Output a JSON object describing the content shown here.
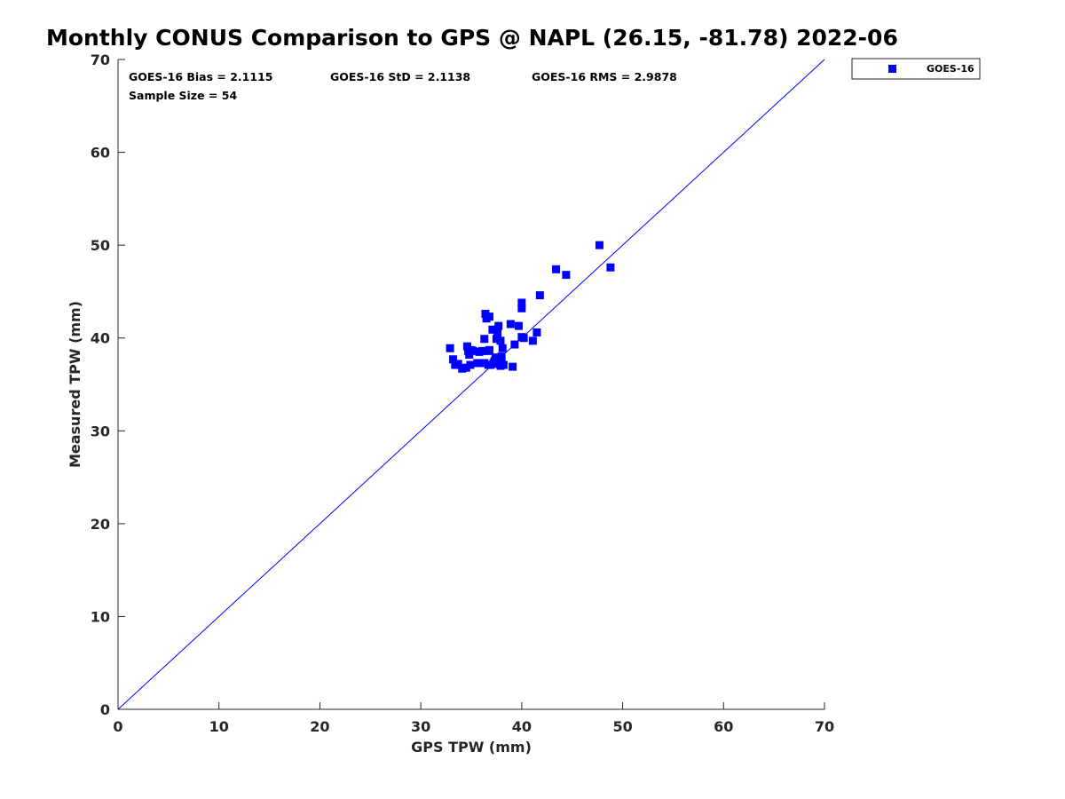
{
  "chart_data": {
    "type": "scatter",
    "title": "Monthly CONUS Comparison to GPS @ NAPL (26.15, -81.78) 2022-06",
    "xlabel": "GPS TPW (mm)",
    "ylabel": "Measured TPW (mm)",
    "xlim": [
      0,
      70
    ],
    "ylim": [
      0,
      70
    ],
    "xticks": [
      "0",
      "10",
      "20",
      "30",
      "40",
      "50",
      "60",
      "70"
    ],
    "yticks": [
      "0",
      "10",
      "20",
      "30",
      "40",
      "50",
      "60",
      "70"
    ],
    "grid": false,
    "legend_position": "outside-top-right",
    "reference_line": {
      "x": [
        0,
        70
      ],
      "y": [
        0,
        70
      ],
      "color": "#0000ff"
    },
    "stats": {
      "bias": "GOES-16 Bias = 2.1115",
      "std": "GOES-16 StD = 2.1138",
      "rms": "GOES-16 RMS = 2.9878",
      "sample_size": "Sample Size = 54"
    },
    "series": [
      {
        "name": "GOES-16",
        "color": "#0000ff",
        "marker": "square",
        "points": [
          [
            32.9,
            38.9
          ],
          [
            33.2,
            37.7
          ],
          [
            33.4,
            37.1
          ],
          [
            33.7,
            37.2
          ],
          [
            34.1,
            36.7
          ],
          [
            34.5,
            36.8
          ],
          [
            34.6,
            39.1
          ],
          [
            34.7,
            38.6
          ],
          [
            34.8,
            38.2
          ],
          [
            34.9,
            37.1
          ],
          [
            35.2,
            38.6
          ],
          [
            35.6,
            37.3
          ],
          [
            35.8,
            38.5
          ],
          [
            36.1,
            38.6
          ],
          [
            36.3,
            37.3
          ],
          [
            36.3,
            39.9
          ],
          [
            36.4,
            42.6
          ],
          [
            36.5,
            42.1
          ],
          [
            36.6,
            38.6
          ],
          [
            36.8,
            42.3
          ],
          [
            36.9,
            37.1
          ],
          [
            37.1,
            40.9
          ],
          [
            37.2,
            37.3
          ],
          [
            37.3,
            37.5
          ],
          [
            37.4,
            37.9
          ],
          [
            37.5,
            37.2
          ],
          [
            37.5,
            39.9
          ],
          [
            37.6,
            40.5
          ],
          [
            37.7,
            41.3
          ],
          [
            37.8,
            37.7
          ],
          [
            37.9,
            37.0
          ],
          [
            37.9,
            39.7
          ],
          [
            38.0,
            38.0
          ],
          [
            38.1,
            38.9
          ],
          [
            38.2,
            37.1
          ],
          [
            38.9,
            41.5
          ],
          [
            39.1,
            36.9
          ],
          [
            39.3,
            39.3
          ],
          [
            39.7,
            41.3
          ],
          [
            40.0,
            40.1
          ],
          [
            40.0,
            43.2
          ],
          [
            40.0,
            43.8
          ],
          [
            40.2,
            40.0
          ],
          [
            41.1,
            39.7
          ],
          [
            41.5,
            40.6
          ],
          [
            41.8,
            44.6
          ],
          [
            43.4,
            47.4
          ],
          [
            44.4,
            46.8
          ],
          [
            47.7,
            50.0
          ],
          [
            48.8,
            47.6
          ],
          [
            36.8,
            38.7
          ],
          [
            38.0,
            37.4
          ],
          [
            35.0,
            38.7
          ],
          [
            36.7,
            37.1
          ]
        ]
      }
    ]
  }
}
